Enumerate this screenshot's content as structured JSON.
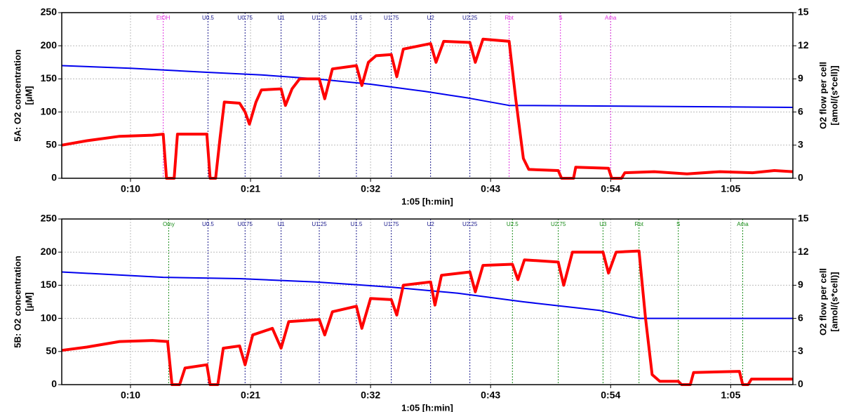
{
  "chart_data": [
    {
      "type": "line",
      "ylabel": [
        "5A: O2 concentration",
        "[µM]"
      ],
      "y2label": [
        "O2 flow per cell",
        "[amol/(s*cell)]"
      ],
      "xlabel": "1:05 [h:min]",
      "xlim": [
        3.7,
        70.7
      ],
      "xticks": [
        {
          "value": 10,
          "label": "0:10"
        },
        {
          "value": 21,
          "label": "0:21"
        },
        {
          "value": 32,
          "label": "0:32"
        },
        {
          "value": 43,
          "label": "0:43"
        },
        {
          "value": 54,
          "label": "0:54"
        },
        {
          "value": 65,
          "label": "1:05"
        }
      ],
      "ylim": [
        0,
        250
      ],
      "yticks": [
        0,
        50,
        100,
        150,
        200,
        250
      ],
      "y2lim": [
        0,
        15
      ],
      "y2ticks": [
        0,
        3,
        6,
        9,
        12,
        15
      ],
      "grid": true,
      "events": [
        {
          "label": "EtOH",
          "x": 13.0,
          "color": "#e030e0"
        },
        {
          "label": "U0.5",
          "x": 17.1,
          "color": "#1a1a8c"
        },
        {
          "label": "U0.75",
          "x": 20.5,
          "color": "#1a1a8c"
        },
        {
          "label": "U1",
          "x": 23.8,
          "color": "#1a1a8c"
        },
        {
          "label": "U1.25",
          "x": 27.3,
          "color": "#1a1a8c"
        },
        {
          "label": "U1.5",
          "x": 30.7,
          "color": "#1a1a8c"
        },
        {
          "label": "U1.75",
          "x": 33.9,
          "color": "#1a1a8c"
        },
        {
          "label": "U2",
          "x": 37.5,
          "color": "#1a1a8c"
        },
        {
          "label": "U2.25",
          "x": 41.1,
          "color": "#1a1a8c"
        },
        {
          "label": "Rot",
          "x": 44.7,
          "color": "#e030e0"
        },
        {
          "label": "S",
          "x": 49.4,
          "color": "#e030e0"
        },
        {
          "label": "Ama",
          "x": 54.0,
          "color": "#e030e0"
        }
      ],
      "series": [
        {
          "color": "#0000ee",
          "axis": "y",
          "width": 2,
          "x": [
            3.7,
            10,
            17,
            22,
            27,
            32,
            37,
            41,
            44.7,
            54,
            62,
            70.7
          ],
          "values": [
            170,
            166,
            160,
            156,
            150,
            142,
            131,
            121,
            110,
            109,
            108,
            107
          ]
        },
        {
          "color": "#ff0000",
          "axis": "y2",
          "width": 4,
          "x": [
            3.7,
            6,
            9,
            12,
            13.0,
            13.3,
            14.0,
            14.3,
            17.0,
            17.3,
            17.8,
            18.2,
            18.6,
            20.0,
            20.5,
            20.9,
            21.5,
            22,
            23.8,
            24.2,
            24.8,
            25.5,
            27.3,
            27.8,
            28.5,
            30.7,
            31.2,
            31.8,
            32.5,
            33.9,
            34.4,
            35.0,
            37.5,
            38.0,
            38.7,
            41.1,
            41.6,
            42.3,
            44.7,
            45.3,
            46,
            46.5,
            49.2,
            49.5,
            50.6,
            50.8,
            53.8,
            54.1,
            55.0,
            55.3,
            58,
            61,
            64,
            67,
            69,
            70.7
          ],
          "values": [
            3.0,
            3.4,
            3.8,
            3.9,
            4.0,
            0,
            0,
            4.0,
            4.0,
            0,
            0,
            3.6,
            6.9,
            6.8,
            6.0,
            4.9,
            6.9,
            8.0,
            8.1,
            6.6,
            8.1,
            9.0,
            9.0,
            7.2,
            9.9,
            10.2,
            8.4,
            10.5,
            11.1,
            11.2,
            9.2,
            11.7,
            12.2,
            10.5,
            12.4,
            12.3,
            10.5,
            12.6,
            12.4,
            7.2,
            1.8,
            0.8,
            0.7,
            0,
            0,
            1.0,
            0.9,
            0,
            0,
            0.5,
            0.6,
            0.4,
            0.6,
            0.5,
            0.7,
            0.6
          ]
        }
      ]
    },
    {
      "type": "line",
      "ylabel": [
        "5B: O2 concentration",
        "[µM]"
      ],
      "y2label": [
        "O2 flow per cell",
        "[amol/(s*cell)]"
      ],
      "xlabel": "1:05 [h:min]",
      "xlim": [
        3.7,
        70.7
      ],
      "xticks": [
        {
          "value": 10,
          "label": "0:10"
        },
        {
          "value": 21,
          "label": "0:21"
        },
        {
          "value": 32,
          "label": "0:32"
        },
        {
          "value": 43,
          "label": "0:43"
        },
        {
          "value": 54,
          "label": "0:54"
        },
        {
          "value": 65,
          "label": "1:05"
        }
      ],
      "ylim": [
        0,
        250
      ],
      "yticks": [
        0,
        50,
        100,
        150,
        200,
        250
      ],
      "y2lim": [
        0,
        15
      ],
      "y2ticks": [
        0,
        3,
        6,
        9,
        12,
        15
      ],
      "grid": true,
      "events": [
        {
          "label": "Omy",
          "x": 13.5,
          "color": "#1a8c1a"
        },
        {
          "label": "U0.5",
          "x": 17.1,
          "color": "#1a1a8c"
        },
        {
          "label": "U0.75",
          "x": 20.5,
          "color": "#1a1a8c"
        },
        {
          "label": "U1",
          "x": 23.8,
          "color": "#1a1a8c"
        },
        {
          "label": "U1.25",
          "x": 27.3,
          "color": "#1a1a8c"
        },
        {
          "label": "U1.5",
          "x": 30.7,
          "color": "#1a1a8c"
        },
        {
          "label": "U1.75",
          "x": 33.9,
          "color": "#1a1a8c"
        },
        {
          "label": "U2",
          "x": 37.5,
          "color": "#1a1a8c"
        },
        {
          "label": "U2.25",
          "x": 41.1,
          "color": "#1a1a8c"
        },
        {
          "label": "U2.5",
          "x": 45.0,
          "color": "#1a8c1a"
        },
        {
          "label": "U2.75",
          "x": 49.2,
          "color": "#1a8c1a"
        },
        {
          "label": "U3",
          "x": 53.3,
          "color": "#1a8c1a"
        },
        {
          "label": "Rot",
          "x": 56.6,
          "color": "#1a8c1a"
        },
        {
          "label": "S",
          "x": 60.2,
          "color": "#1a8c1a"
        },
        {
          "label": "Ama",
          "x": 66.1,
          "color": "#1a8c1a"
        }
      ],
      "series": [
        {
          "color": "#0000ee",
          "axis": "y",
          "width": 2,
          "x": [
            3.7,
            13,
            20,
            27,
            34,
            40,
            46,
            53,
            56.6,
            60,
            70.7
          ],
          "values": [
            170,
            162,
            160,
            155,
            147,
            138,
            125,
            112,
            100,
            100,
            100
          ]
        },
        {
          "color": "#ff0000",
          "axis": "y2",
          "width": 4,
          "x": [
            3.7,
            6,
            9,
            12,
            13.4,
            13.8,
            14.5,
            15,
            17.0,
            17.3,
            18.0,
            18.5,
            20.0,
            20.5,
            21.2,
            23.0,
            23.8,
            24.5,
            27.3,
            27.8,
            28.5,
            30.7,
            31.2,
            32.0,
            33.9,
            34.4,
            35.0,
            37.5,
            37.9,
            38.5,
            41.1,
            41.6,
            42.3,
            45.0,
            45.5,
            46.1,
            49.2,
            49.7,
            50.5,
            53.3,
            53.8,
            54.5,
            56.6,
            57.2,
            57.8,
            58.5,
            60.2,
            60.5,
            61.3,
            61.6,
            65.8,
            66.1,
            66.6,
            66.9,
            70.7
          ],
          "values": [
            3.1,
            3.4,
            3.9,
            4.0,
            3.9,
            0,
            0,
            1.5,
            1.8,
            0,
            0,
            3.3,
            3.5,
            1.8,
            4.5,
            5.1,
            3.3,
            5.7,
            5.9,
            4.5,
            6.6,
            7.1,
            5.1,
            7.8,
            7.7,
            6.3,
            9.0,
            9.3,
            7.2,
            9.9,
            10.2,
            8.4,
            10.8,
            10.9,
            9.5,
            11.3,
            11.1,
            9.0,
            12.0,
            12.0,
            10.1,
            12.0,
            12.1,
            6.0,
            0.9,
            0.3,
            0.3,
            0,
            0,
            1.1,
            1.2,
            0,
            0,
            0.5,
            0.5
          ]
        }
      ]
    }
  ]
}
